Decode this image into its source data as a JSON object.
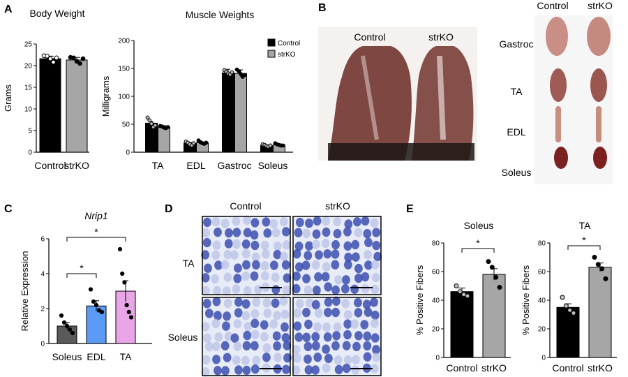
{
  "panels": {
    "A": "A",
    "B": "B",
    "C": "C",
    "D": "D",
    "E": "E"
  },
  "colors": {
    "control": "#000000",
    "strko": "#a6a6a6",
    "soleus": "#5a5a5a",
    "edl": "#5b9bf5",
    "ta": "#e8a6e6",
    "stain": "#3b4fb0",
    "stain_bg": "#e8ecf7",
    "tissue": "#8c4a44"
  },
  "photo_b": {
    "labels": {
      "control": "Control",
      "strko": "strKO",
      "gastroc": "Gastroc",
      "ta": "TA",
      "edl": "EDL",
      "soleus": "Soleus"
    }
  },
  "micrograph_d": {
    "col_control": "Control",
    "col_strko": "strKO",
    "row_ta": "TA",
    "row_soleus": "Soleus"
  },
  "chart_data": [
    {
      "id": "body-weight",
      "type": "bar",
      "title": "Body Weight",
      "ylabel": "Grams",
      "ylim": [
        0,
        25
      ],
      "yticks": [
        0,
        5,
        10,
        15,
        20,
        25
      ],
      "categories": [
        "Control",
        "strKO"
      ],
      "values": [
        21.6,
        21.3
      ],
      "sem": [
        0.6,
        0.6
      ],
      "points": [
        [
          22.3,
          22.2,
          21.6,
          20.8,
          21.8
        ],
        [
          21.9,
          21.8,
          21.0,
          20.5,
          21.6
        ]
      ]
    },
    {
      "id": "muscle-weights",
      "type": "bar",
      "title": "Muscle Weights",
      "ylabel": "Milligrams",
      "ylim": [
        0,
        200
      ],
      "yticks": [
        0,
        50,
        100,
        150,
        200
      ],
      "categories": [
        "TA",
        "EDL",
        "Gastroc",
        "Soleus"
      ],
      "legend": "top-right",
      "series": [
        {
          "name": "Control",
          "values": [
            52,
            16,
            142,
            12
          ],
          "points": [
            [
              62,
              57,
              51,
              45,
              48
            ],
            [
              19,
              17,
              14,
              12,
              16
            ],
            [
              147,
              144,
              141,
              139,
              143
            ],
            [
              14,
              13,
              11,
              10,
              12
            ]
          ]
        },
        {
          "name": "strKO",
          "values": [
            45,
            17,
            141,
            13
          ],
          "points": [
            [
              47,
              46,
              44,
              43,
              45
            ],
            [
              21,
              18,
              16,
              15,
              17
            ],
            [
              148,
              145,
              140,
              135,
              138
            ],
            [
              16,
              14,
              13,
              12,
              12
            ]
          ]
        }
      ]
    },
    {
      "id": "nrip1",
      "type": "bar",
      "title": "Nrip1",
      "ylabel": "Relative Expression",
      "ylim": [
        0,
        6
      ],
      "yticks": [
        0,
        2,
        4,
        6
      ],
      "categories": [
        "Soleus",
        "EDL",
        "TA"
      ],
      "values": [
        1.0,
        2.15,
        3.0
      ],
      "sem": [
        0.2,
        0.3,
        0.6
      ],
      "points": [
        [
          1.6,
          1.2,
          1.0,
          0.8,
          0.6
        ],
        [
          3.1,
          2.4,
          2.2,
          1.9,
          1.8
        ],
        [
          5.4,
          4.0,
          3.5,
          2.2,
          1.8,
          1.5
        ]
      ],
      "significance": [
        {
          "from": "Soleus",
          "to": "EDL",
          "label": "*"
        },
        {
          "from": "Soleus",
          "to": "TA",
          "label": "*"
        }
      ]
    },
    {
      "id": "soleus-fibers",
      "type": "bar",
      "title": "Soleus",
      "ylabel": "% Positive Fibers",
      "ylim": [
        0,
        80
      ],
      "yticks": [
        0,
        20,
        40,
        60,
        80
      ],
      "categories": [
        "Control",
        "strKO"
      ],
      "values": [
        46,
        58
      ],
      "sem": [
        2.5,
        4
      ],
      "points": [
        [
          50,
          46,
          44,
          43
        ],
        [
          67,
          63,
          56,
          49
        ]
      ],
      "significance": [
        {
          "from": "Control",
          "to": "strKO",
          "label": "*"
        }
      ]
    },
    {
      "id": "ta-fibers",
      "type": "bar",
      "title": "TA",
      "ylabel": "% Positive Fibers",
      "ylim": [
        0,
        80
      ],
      "yticks": [
        0,
        20,
        40,
        60,
        80
      ],
      "categories": [
        "Control",
        "strKO"
      ],
      "values": [
        35,
        63
      ],
      "sem": [
        2.5,
        3
      ],
      "points": [
        [
          42,
          36,
          33,
          31
        ],
        [
          70,
          65,
          62,
          55
        ]
      ],
      "significance": [
        {
          "from": "Control",
          "to": "strKO",
          "label": "*"
        }
      ]
    }
  ]
}
